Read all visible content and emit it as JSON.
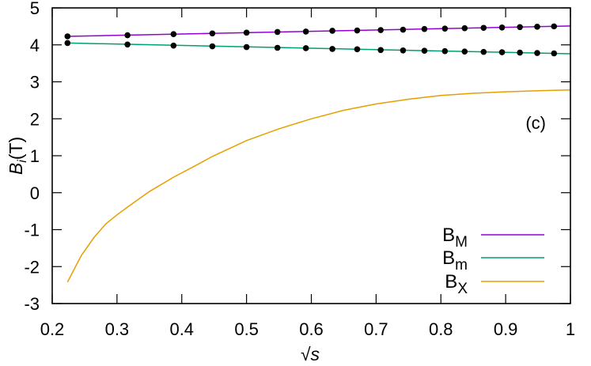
{
  "chart_data": {
    "type": "line",
    "title": "",
    "annotation": "(c)",
    "xlabel": "√s",
    "ylabel": "B_i (T)",
    "xlim": [
      0.2,
      1.0
    ],
    "ylim": [
      -3,
      5
    ],
    "xticks": [
      0.2,
      0.3,
      0.4,
      0.5,
      0.6,
      0.7,
      0.8,
      0.9,
      1
    ],
    "xtick_labels": [
      "0.2",
      "0.3",
      "0.4",
      "0.5",
      "0.6",
      "0.7",
      "0.8",
      "0.9",
      "1"
    ],
    "yticks": [
      -3,
      -2,
      -1,
      0,
      1,
      2,
      3,
      4,
      5
    ],
    "ytick_labels": [
      "-3",
      "-2",
      "-1",
      "0",
      "1",
      "2",
      "3",
      "4",
      "5"
    ],
    "grid": false,
    "legend_position": "lower right",
    "series": [
      {
        "name": "B_M",
        "label_main": "B",
        "label_sub": "M",
        "color": "#9400d3",
        "line_x": [
          0.2236,
          1.0
        ],
        "line_y": [
          4.23,
          4.51
        ],
        "markers_x": [
          0.2236,
          0.3162,
          0.3873,
          0.4472,
          0.5,
          0.5477,
          0.5916,
          0.6325,
          0.6708,
          0.7071,
          0.7416,
          0.7746,
          0.8062,
          0.8367,
          0.866,
          0.8944,
          0.922,
          0.9487,
          0.9747
        ],
        "markers_y": [
          4.23,
          4.26,
          4.29,
          4.31,
          4.33,
          4.35,
          4.36,
          4.38,
          4.39,
          4.4,
          4.41,
          4.43,
          4.44,
          4.45,
          4.46,
          4.47,
          4.48,
          4.49,
          4.5
        ]
      },
      {
        "name": "B_m",
        "label_main": "B",
        "label_sub": "m",
        "color": "#009e73",
        "line_x": [
          0.2236,
          1.0
        ],
        "line_y": [
          4.05,
          3.76
        ],
        "markers_x": [
          0.2236,
          0.3162,
          0.3873,
          0.4472,
          0.5,
          0.5477,
          0.5916,
          0.6325,
          0.6708,
          0.7071,
          0.7416,
          0.7746,
          0.8062,
          0.8367,
          0.866,
          0.8944,
          0.922,
          0.9487,
          0.9747
        ],
        "markers_y": [
          4.05,
          4.01,
          3.98,
          3.96,
          3.94,
          3.92,
          3.91,
          3.89,
          3.88,
          3.86,
          3.85,
          3.84,
          3.83,
          3.82,
          3.81,
          3.8,
          3.79,
          3.78,
          3.77
        ]
      },
      {
        "name": "B_X",
        "label_main": "B",
        "label_sub": "X",
        "color": "#e69f00",
        "line_x": [
          0.2236,
          0.245,
          0.265,
          0.283,
          0.3,
          0.3162,
          0.35,
          0.3873,
          0.42,
          0.4472,
          0.5,
          0.55,
          0.6,
          0.65,
          0.7,
          0.75,
          0.8,
          0.85,
          0.9,
          0.95,
          1.0
        ],
        "line_y": [
          -2.42,
          -1.7,
          -1.2,
          -0.84,
          -0.6,
          -0.39,
          0.03,
          0.42,
          0.72,
          0.98,
          1.41,
          1.73,
          2.0,
          2.23,
          2.4,
          2.53,
          2.63,
          2.69,
          2.73,
          2.76,
          2.78
        ]
      }
    ]
  }
}
